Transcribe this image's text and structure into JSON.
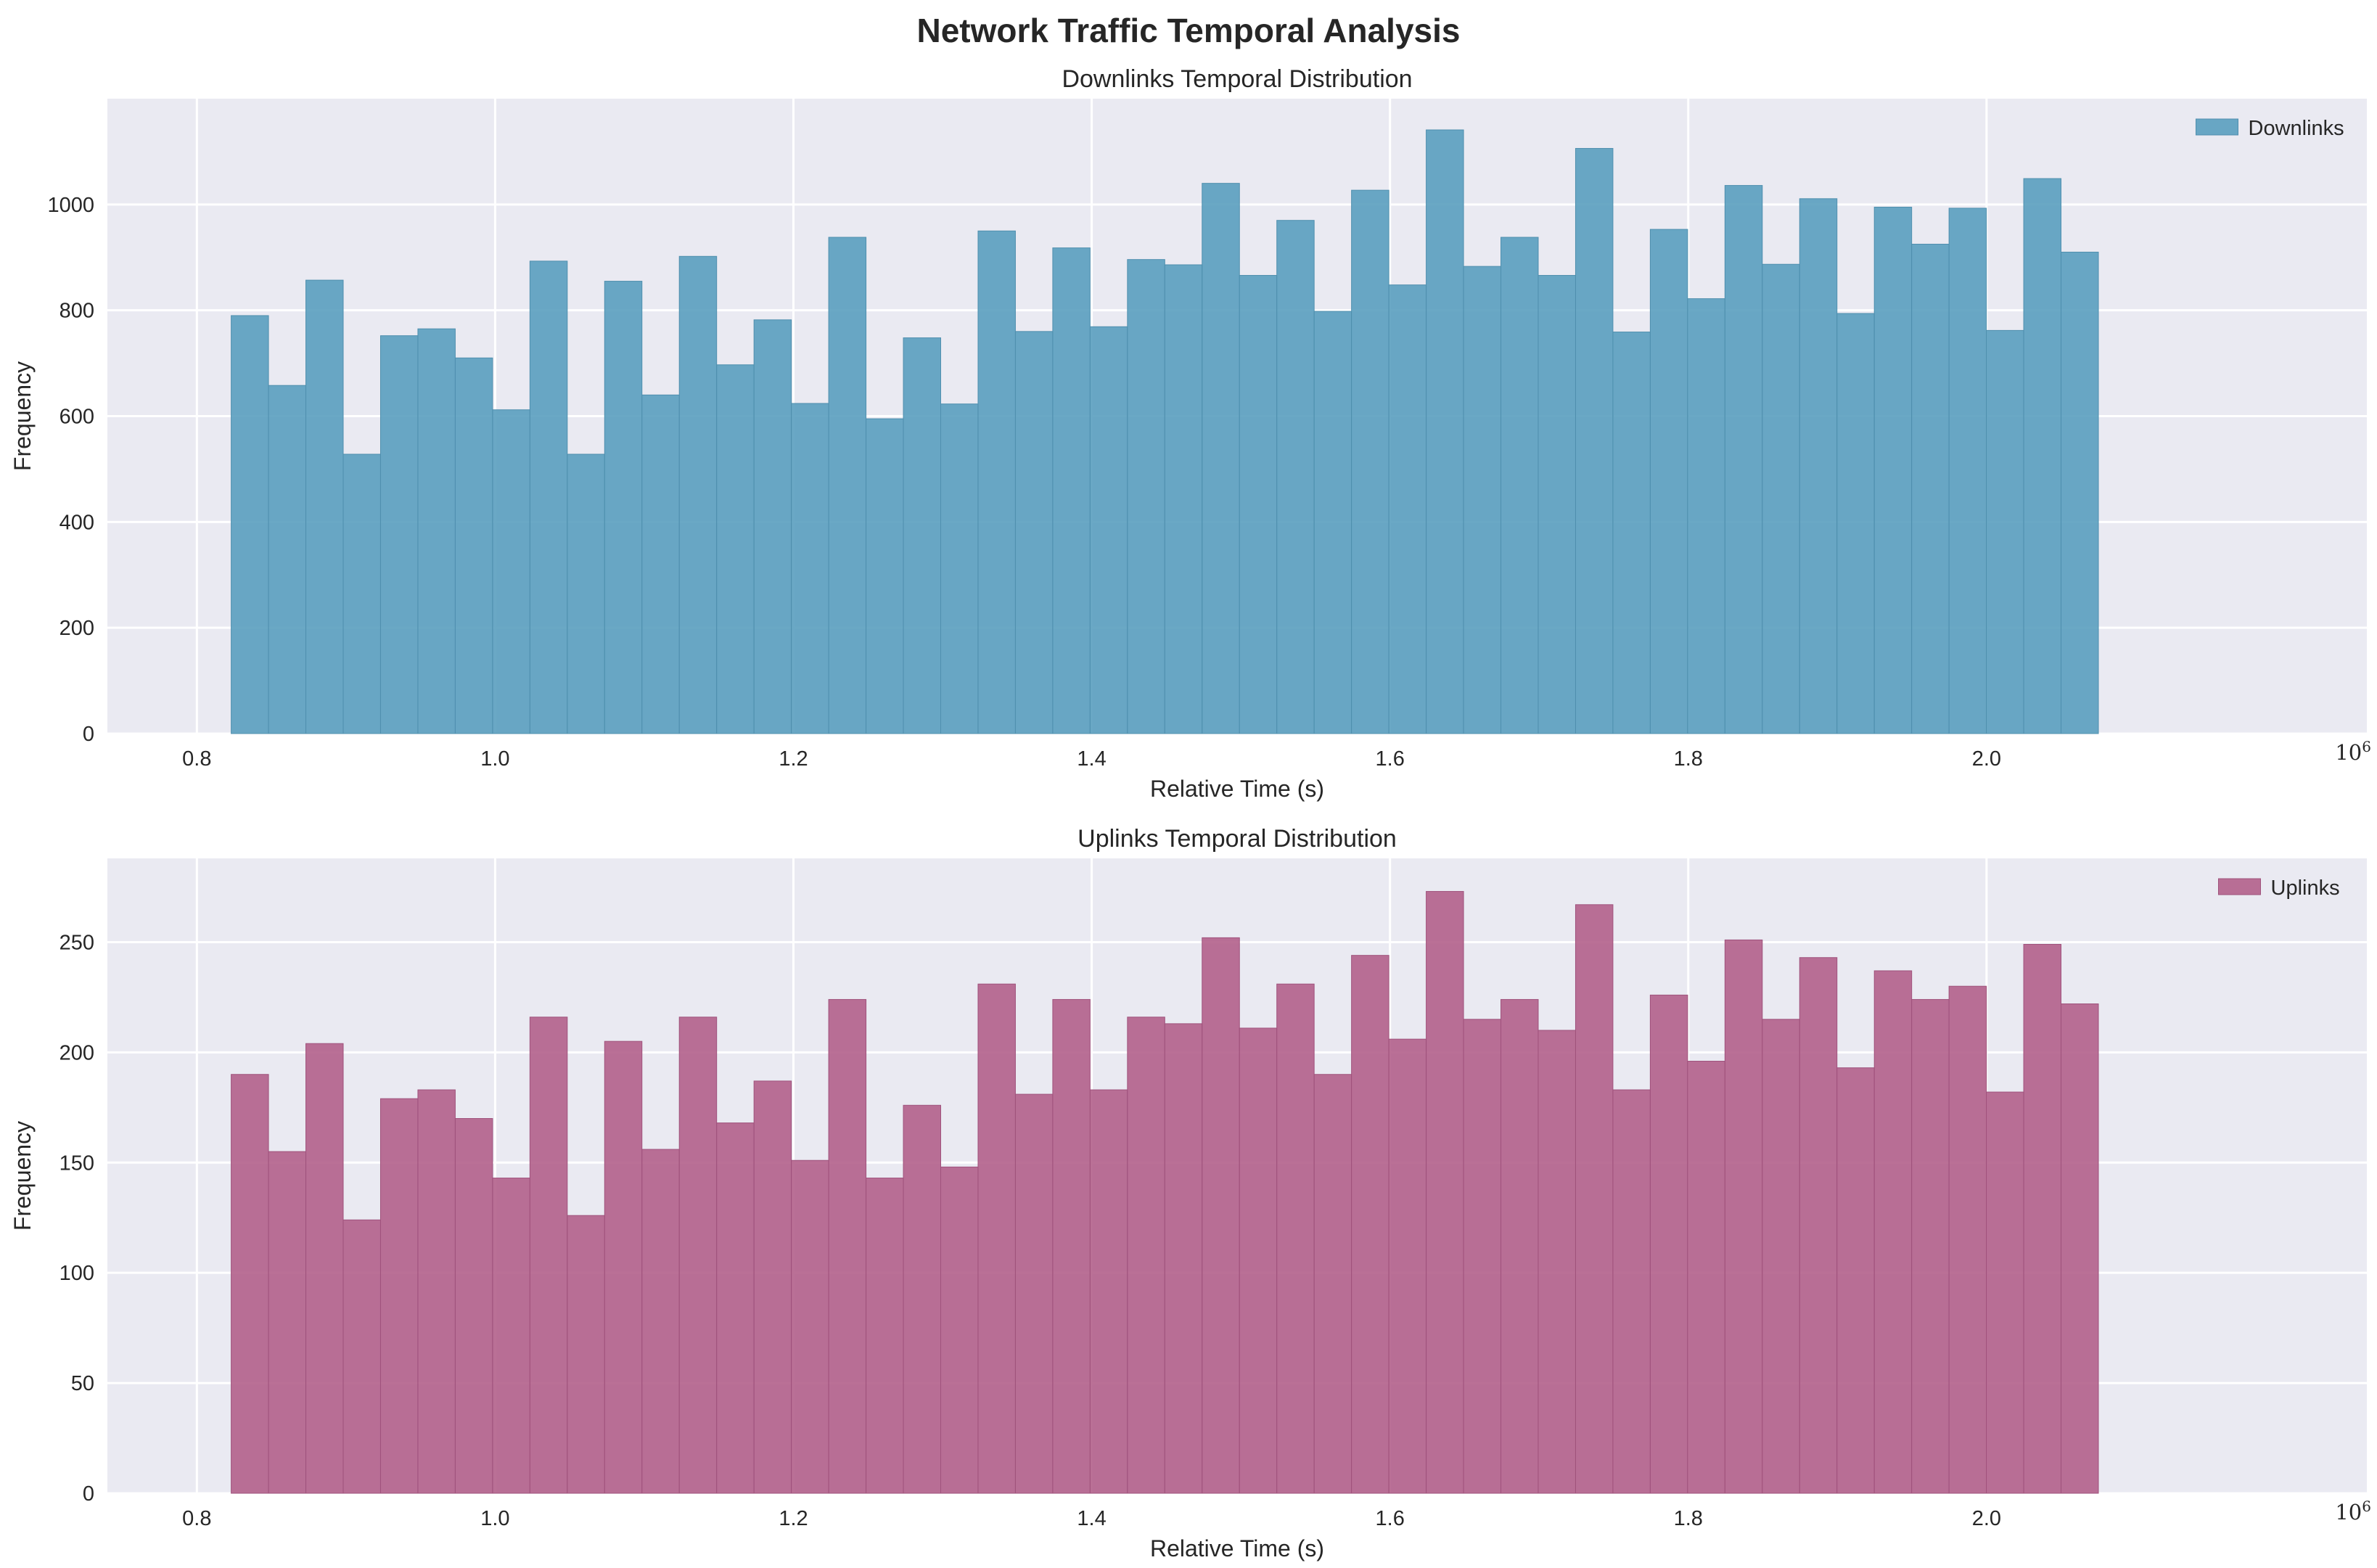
{
  "figure": {
    "title": "Network Traffic Temporal Analysis"
  },
  "chart_data": [
    {
      "type": "bar",
      "subtype": "histogram",
      "title": "Downlinks Temporal Distribution",
      "xlabel": "Relative Time (s)",
      "ylabel": "Frequency",
      "x_offset_label_base": "10",
      "x_offset_label_exp": "6",
      "xlim": [
        0.74,
        2.255
      ],
      "ylim": [
        0,
        1200
      ],
      "xticks": [
        0.8,
        1.0,
        1.2,
        1.4,
        1.6,
        1.8,
        2.0
      ],
      "xtick_labels": [
        "0.8",
        "1.0",
        "1.2",
        "1.4",
        "1.6",
        "1.8",
        "2.0"
      ],
      "yticks": [
        0,
        200,
        400,
        600,
        800,
        1000
      ],
      "ytick_labels": [
        "0",
        "200",
        "400",
        "600",
        "800",
        "1000"
      ],
      "bin_start": 0.823,
      "bin_end": 2.075,
      "series": [
        {
          "name": "Downlinks",
          "color": "#5a9fbf",
          "edge_color": "#4f8fae",
          "values": [
            790,
            658,
            857,
            528,
            752,
            765,
            710,
            612,
            893,
            528,
            855,
            640,
            902,
            697,
            782,
            624,
            938,
            595,
            748,
            623,
            950,
            760,
            918,
            769,
            896,
            886,
            1040,
            866,
            970,
            798,
            1027,
            848,
            1141,
            883,
            938,
            866,
            1106,
            759,
            953,
            822,
            1036,
            887,
            1011,
            794,
            995,
            925,
            993,
            762,
            1049,
            910
          ]
        }
      ],
      "legend": {
        "position": "upper-right",
        "entries": [
          "Downlinks"
        ]
      },
      "grid": true
    },
    {
      "type": "bar",
      "subtype": "histogram",
      "title": "Uplinks Temporal Distribution",
      "xlabel": "Relative Time (s)",
      "ylabel": "Frequency",
      "x_offset_label_base": "10",
      "x_offset_label_exp": "6",
      "xlim": [
        0.74,
        2.255
      ],
      "ylim": [
        0,
        288
      ],
      "xticks": [
        0.8,
        1.0,
        1.2,
        1.4,
        1.6,
        1.8,
        2.0
      ],
      "xtick_labels": [
        "0.8",
        "1.0",
        "1.2",
        "1.4",
        "1.6",
        "1.8",
        "2.0"
      ],
      "yticks": [
        0,
        50,
        100,
        150,
        200,
        250
      ],
      "ytick_labels": [
        "0",
        "50",
        "100",
        "150",
        "200",
        "250"
      ],
      "bin_start": 0.823,
      "bin_end": 2.075,
      "series": [
        {
          "name": "Uplinks",
          "color": "#b2608b",
          "edge_color": "#9f527c",
          "values": [
            190,
            155,
            204,
            124,
            179,
            183,
            170,
            143,
            216,
            126,
            205,
            156,
            216,
            168,
            187,
            151,
            224,
            143,
            176,
            148,
            231,
            181,
            224,
            183,
            216,
            213,
            252,
            211,
            231,
            190,
            244,
            206,
            273,
            215,
            224,
            210,
            267,
            183,
            226,
            196,
            251,
            215,
            243,
            193,
            237,
            224,
            230,
            182,
            249,
            222
          ]
        }
      ],
      "legend": {
        "position": "upper-right",
        "entries": [
          "Uplinks"
        ]
      },
      "grid": true
    }
  ]
}
